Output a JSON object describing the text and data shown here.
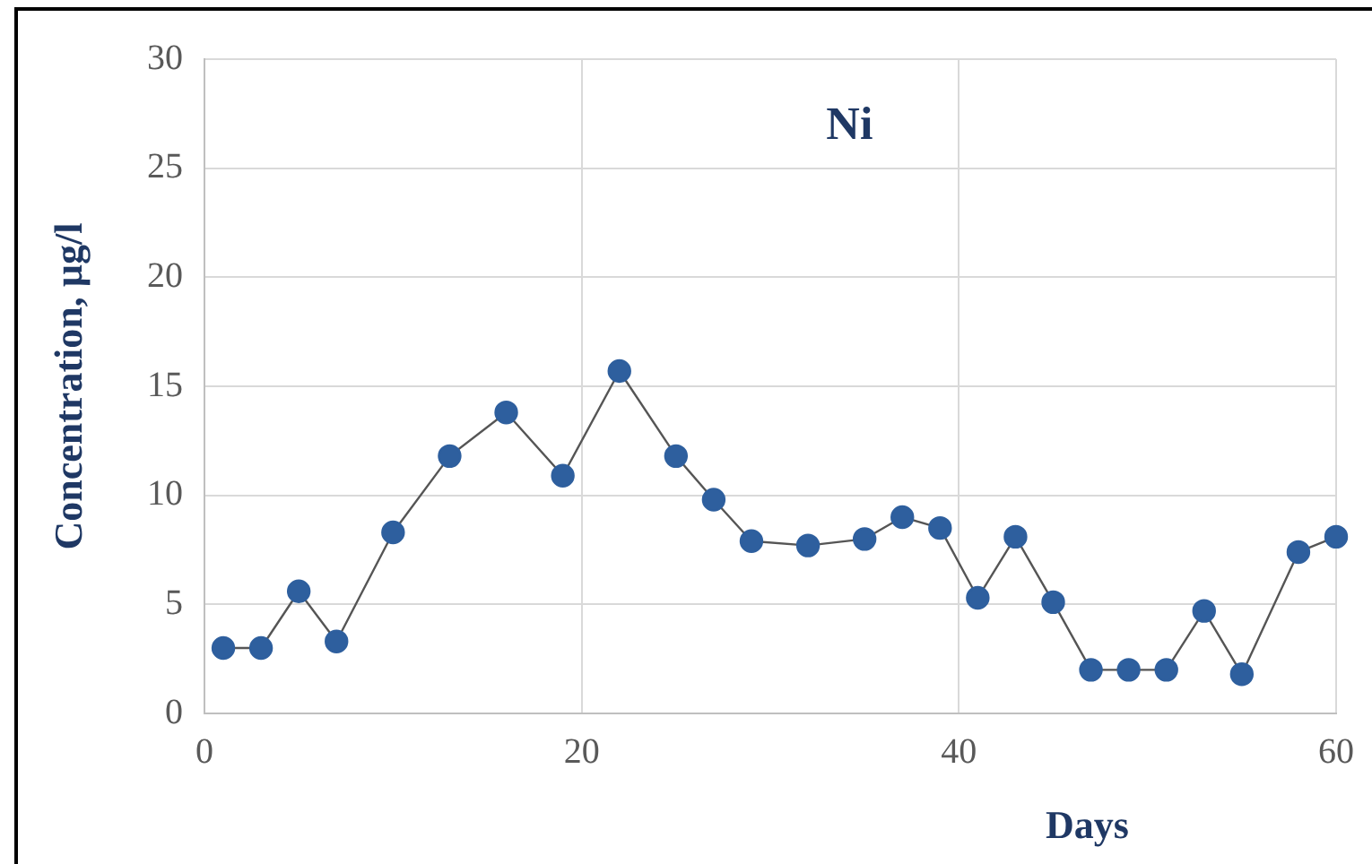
{
  "chart_data": {
    "type": "line",
    "title": "Ni",
    "xlabel": "Days",
    "ylabel": "Concentration, µg/l",
    "x": [
      1,
      3,
      5,
      7,
      10,
      13,
      16,
      19,
      22,
      25,
      27,
      29,
      32,
      35,
      37,
      39,
      41,
      43,
      45,
      47,
      49,
      51,
      53,
      55,
      58,
      60
    ],
    "series": [
      {
        "color": "#2e5f9e",
        "values": [
          3,
          3,
          5.6,
          3.3,
          8.3,
          11.8,
          13.8,
          10.9,
          15.7,
          11.8,
          9.8,
          7.9,
          7.7,
          8,
          9,
          8.5,
          5.3,
          8.1,
          5.1,
          2,
          2,
          2,
          4.7,
          1.8,
          7.4,
          8.1
        ]
      }
    ],
    "xlim": [
      0,
      60
    ],
    "xticks": [
      0,
      20,
      40,
      60
    ],
    "ylim": [
      0,
      30
    ],
    "yticks": [
      0,
      5,
      10,
      15,
      20,
      25,
      30
    ],
    "grid": true,
    "legend": false,
    "marker": "circle",
    "line_style": "solid"
  }
}
